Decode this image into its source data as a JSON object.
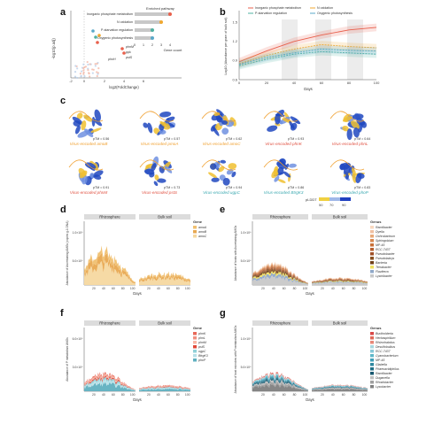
{
  "panel_letters": {
    "a": "a",
    "b": "b",
    "c": "c",
    "d": "d",
    "e": "e",
    "f": "f",
    "g": "g"
  },
  "colors": {
    "inorganic_p": "#e8604c",
    "n_oxidation": "#f0a830",
    "photosynthesis": "#5aa8c8",
    "p_regulation": "#4fb0a0",
    "orange_label": "#f0a030",
    "red_label": "#e05040",
    "teal_label": "#3aa8b0",
    "strip_bg": "#dcdcdc",
    "band_bg": "#e6e6e6"
  },
  "panel_a": {
    "xlabel": "log2(FoldChange)",
    "ylabel": "-log10(p.adj)",
    "xticks": [
      "-2",
      "0",
      "2",
      "4",
      "6"
    ],
    "legend_title": "Enriched pathway",
    "pathways": [
      {
        "name": "Inorganic phosphate metabolism",
        "count": 4,
        "color": "#e8604c"
      },
      {
        "name": "N oxidation",
        "count": 3,
        "color": "#f0a830"
      },
      {
        "name": "P-starvation regulation",
        "count": 2,
        "color": "#4fb0a0"
      },
      {
        "name": "Oxygenic photosynthesis",
        "count": 2,
        "color": "#5aa8c8"
      }
    ],
    "bar_xlabel": "Gene count",
    "bar_ticks": [
      "0",
      "1",
      "2",
      "3",
      "4"
    ],
    "point_labels": [
      "phnM",
      "ppk",
      "pstS",
      "phoH"
    ]
  },
  "panel_b": {
    "ylabel": "Log10 (Abundance per gram of bulk soil)",
    "xlabel": "Days",
    "yticks": [
      "0.6",
      "0.9",
      "1.2",
      "1.5"
    ],
    "xticks": [
      "0",
      "20",
      "40",
      "60",
      "80",
      "100"
    ],
    "legend": [
      {
        "name": "Inorganic phosphate metabolism",
        "color": "#e8604c"
      },
      {
        "name": "N oxidation",
        "color": "#f0a830"
      },
      {
        "name": "P-starvation regulation",
        "color": "#4fb0a0"
      },
      {
        "name": "Oxygenic photosynthesis",
        "color": "#5aa8c8"
      }
    ],
    "chart_data": {
      "type": "line",
      "x": [
        0,
        20,
        40,
        60,
        80,
        100
      ],
      "series": [
        {
          "name": "Inorganic phosphate metabolism",
          "values": [
            0.88,
            1.05,
            1.2,
            1.3,
            1.38,
            1.42
          ]
        },
        {
          "name": "N oxidation",
          "values": [
            0.85,
            0.98,
            1.08,
            1.15,
            1.12,
            1.1
          ]
        },
        {
          "name": "P-starvation regulation",
          "values": [
            0.82,
            0.92,
            1.0,
            1.04,
            1.02,
            1.0
          ]
        },
        {
          "name": "Oxygenic photosynthesis",
          "values": [
            0.84,
            0.95,
            1.02,
            1.08,
            1.06,
            1.05
          ]
        }
      ],
      "ylim": [
        0.6,
        1.6
      ]
    }
  },
  "panel_c": {
    "proteins": [
      {
        "label": "Virus-encoded amoB",
        "ptm": "pTM = 0.56",
        "color": "#f0a030"
      },
      {
        "label": "Virus-encoded pmoA",
        "ptm": "pTM = 0.57",
        "color": "#f0a030"
      },
      {
        "label": "Virus-encoded amoC",
        "ptm": "pTM = 0.62",
        "color": "#f0a030"
      },
      {
        "label": "Virus-encoded phnK",
        "ptm": "pTM = 0.93",
        "color": "#e05040"
      },
      {
        "label": "Virus-encoded phnL",
        "ptm": "pTM = 0.64",
        "color": "#e05040"
      },
      {
        "label": "Virus-encoded phnM",
        "ptm": "pTM = 0.91",
        "color": "#e05040"
      },
      {
        "label": "Virus-encoded pstS",
        "ptm": "pTM = 0.73",
        "color": "#e05040"
      },
      {
        "label": "Virus-encoded ugpC",
        "ptm": "pTM = 0.94",
        "color": "#3aa8b0"
      },
      {
        "label": "Virus-encoded BtrgK3",
        "ptm": "pTM = 0.86",
        "color": "#3aa8b0"
      },
      {
        "label": "Virus-encoded phoP",
        "ptm": "pTM = 0.83",
        "color": "#3aa8b0"
      }
    ],
    "plddt_title": "pLDDT",
    "plddt_ticks": [
      "50",
      "70",
      "90"
    ]
  },
  "panel_d": {
    "strip_left": "Rhizosphere",
    "strip_right": "Bulk soil",
    "ylabel": "Abundance of Ascertaining AMGs (copies g-1 DNA)",
    "yticks": [
      "1.0×10⁹",
      "5.0×10⁸"
    ],
    "xlabel": "Days",
    "xticks": [
      "20",
      "40",
      "60",
      "80",
      "100",
      "20",
      "40",
      "60",
      "80",
      "100"
    ],
    "legend_title": "Gene",
    "legend": [
      {
        "name": "amoA",
        "color": "#f0c070"
      },
      {
        "name": "amoB",
        "color": "#e8a850"
      },
      {
        "name": "amoC",
        "color": "#f5d8a0"
      }
    ]
  },
  "panel_e": {
    "strip_left": "Rhizosphere",
    "strip_right": "Bulk soil",
    "ylabel": "Abundance of hosts with Ascertaining AMGs",
    "yticks": [
      "1.0×10⁹",
      "5.0×10⁸"
    ],
    "xlabel": "Days",
    "xticks": [
      "20",
      "40",
      "60",
      "80",
      "100",
      "20",
      "40",
      "60",
      "80",
      "100"
    ],
    "legend_title": "Genus",
    "legend": [
      {
        "name": "Ramlibacter",
        "color": "#f8d8c0"
      },
      {
        "name": "Dyella",
        "color": "#f0c0a0"
      },
      {
        "name": "Ochrobactrum",
        "color": "#e8a878"
      },
      {
        "name": "Sphingobium",
        "color": "#d88850"
      },
      {
        "name": "MP-45",
        "color": "#c87038"
      },
      {
        "name": "RCC-7437",
        "color": "#b86030"
      },
      {
        "name": "Pseudobacter",
        "color": "#a05028"
      },
      {
        "name": "Pseudolabrys",
        "color": "#885020"
      },
      {
        "name": "Bacteria",
        "color": "#704018"
      },
      {
        "name": "Terrabacter",
        "color": "#f0e060"
      },
      {
        "name": "Flaviterra",
        "color": "#90a8c8"
      },
      {
        "name": "Lysinibacter",
        "color": "#c8c8c8"
      }
    ]
  },
  "panel_f": {
    "strip_left": "Rhizosphere",
    "strip_right": "Bulk soil",
    "ylabel": "Abundance of P metabolism AMGs",
    "yticks": [
      "6.0×10⁸",
      "3.0×10⁸"
    ],
    "xlabel": "Days",
    "xticks": [
      "20",
      "40",
      "60",
      "80",
      "100",
      "20",
      "40",
      "60",
      "80",
      "100"
    ],
    "legend_title": "Gene",
    "legend": [
      {
        "name": "phnK",
        "color": "#e86858"
      },
      {
        "name": "phnL",
        "color": "#f09080"
      },
      {
        "name": "phnM",
        "color": "#f8b8a8"
      },
      {
        "name": "pstS",
        "color": "#e04838"
      },
      {
        "name": "ugpC",
        "color": "#90d0d8"
      },
      {
        "name": "BtrgK3",
        "color": "#b8e0e8"
      },
      {
        "name": "phoP",
        "color": "#60b0c0"
      }
    ]
  },
  "panel_g": {
    "strip_left": "Rhizosphere",
    "strip_right": "Bulk soil",
    "ylabel": "Abundance of host microbes with P metabolism AMGs",
    "yticks": [
      "1.0×10⁹",
      "5.0×10⁸"
    ],
    "xlabel": "Days",
    "xticks": [
      "20",
      "40",
      "60",
      "80",
      "100",
      "20",
      "40",
      "60",
      "80",
      "100"
    ],
    "legend_title": "Genus",
    "legend": [
      {
        "name": "Burkholderia",
        "color": "#d84848"
      },
      {
        "name": "Herbaspirillum",
        "color": "#e06858"
      },
      {
        "name": "Rhizorhabdus",
        "color": "#e88878"
      },
      {
        "name": "Desulfobulbus",
        "color": "#a8d8e0"
      },
      {
        "name": "RCC-7437",
        "color": "#88c8d8"
      },
      {
        "name": "Cyanobacterium",
        "color": "#60b8c8"
      },
      {
        "name": "MP-45",
        "color": "#40a0b8"
      },
      {
        "name": "Glabella",
        "color": "#3088a0"
      },
      {
        "name": "Phaeoacidiphilus",
        "color": "#207088"
      },
      {
        "name": "Ramlibacter",
        "color": "#185870"
      },
      {
        "name": "Duganella",
        "color": "#c0c0c0"
      },
      {
        "name": "Rhodobacter",
        "color": "#a0a0a0"
      },
      {
        "name": "Lysobacter",
        "color": "#808080"
      }
    ]
  }
}
